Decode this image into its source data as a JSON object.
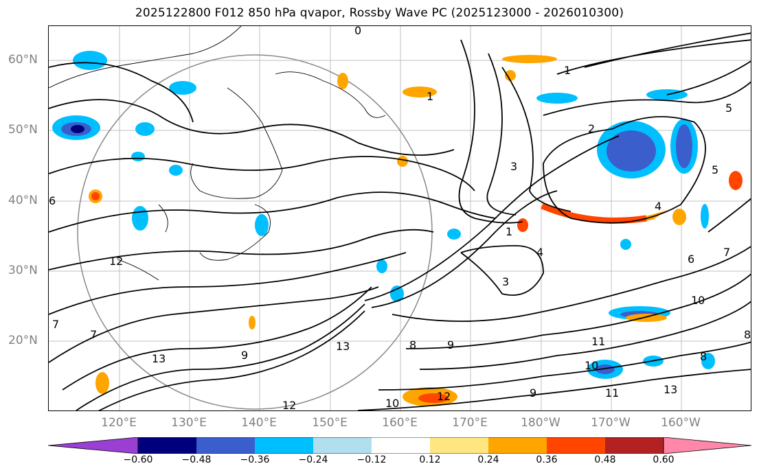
{
  "title": "2025122800 F012 850 hPa qvapor, Rossby Wave PC (2025123000 - 2026010300)",
  "map": {
    "lat_labels": [
      "60°N",
      "50°N",
      "40°N",
      "30°N",
      "20°N"
    ],
    "lon_labels": [
      "120°E",
      "130°E",
      "140°E",
      "150°E",
      "160°E",
      "170°E",
      "180°W",
      "170°W",
      "160°W"
    ],
    "contour_labels": [
      "0",
      "1",
      "1",
      "1",
      "2",
      "3",
      "3",
      "4",
      "4",
      "5",
      "5",
      "6",
      "6",
      "7",
      "7",
      "7",
      "8",
      "8",
      "8",
      "9",
      "9",
      "9",
      "10",
      "10",
      "10",
      "11",
      "11",
      "12",
      "12",
      "12",
      "13",
      "13",
      "13"
    ]
  },
  "colorbar": {
    "colors": [
      "#9b3fd4",
      "#00007f",
      "#3a5fcd",
      "#00bfff",
      "#b2dfee",
      "#ffffff",
      "#ffe680",
      "#ffa500",
      "#ff4500",
      "#b22222",
      "#ff88aa"
    ],
    "ticks": [
      "−0.60",
      "−0.48",
      "−0.36",
      "−0.24",
      "−0.12",
      "0.12",
      "0.24",
      "0.36",
      "0.48",
      "0.60"
    ]
  }
}
